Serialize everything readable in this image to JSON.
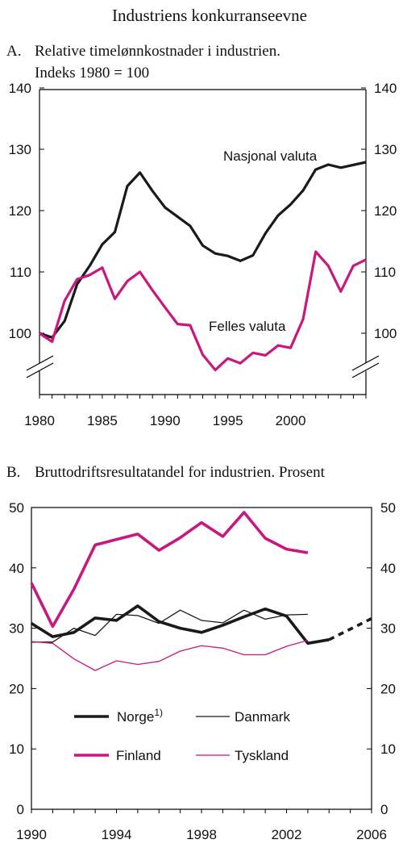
{
  "title": "Industriens konkurranseevne",
  "chart_data": [
    {
      "type": "line",
      "panel_label": "A.",
      "title": "Relative timelønnkostnader i industrien.",
      "subtitle": "Indeks 1980 = 100",
      "xlim": [
        1980,
        2006
      ],
      "ylim": [
        100,
        140
      ],
      "yticks": [
        "100",
        "110",
        "120",
        "130",
        "140"
      ],
      "xticks": [
        "1980",
        "1985",
        "1990",
        "1995",
        "2000"
      ],
      "axis_break": true,
      "grid": false,
      "series": [
        {
          "name": "Nasjonal valuta",
          "color": "#1a1a1a",
          "x": [
            1980,
            1981,
            1982,
            1983,
            1984,
            1985,
            1986,
            1987,
            1988,
            1989,
            1990,
            1991,
            1992,
            1993,
            1994,
            1995,
            1996,
            1997,
            1998,
            1999,
            2000,
            2001,
            2002,
            2003,
            2004,
            2006
          ],
          "values": [
            100,
            99.3,
            102,
            108,
            111,
            114.5,
            116.5,
            124,
            126.2,
            123.2,
            120.5,
            119,
            117.5,
            114.3,
            113,
            112.6,
            111.8,
            112.7,
            116.3,
            119.2,
            121,
            123.3,
            126.7,
            127.5,
            127,
            127.9
          ]
        },
        {
          "name": "Felles valuta",
          "color": "#c8177e",
          "x": [
            1980,
            1981,
            1982,
            1983,
            1984,
            1985,
            1986,
            1987,
            1988,
            1989,
            1990,
            1991,
            1992,
            1993,
            1994,
            1995,
            1996,
            1997,
            1998,
            1999,
            2000,
            2001,
            2002,
            2003,
            2004,
            2005,
            2006
          ],
          "values": [
            100,
            98.6,
            105.3,
            108.8,
            109.5,
            110.7,
            105.6,
            108.5,
            110,
            107,
            104.2,
            101.5,
            101.3,
            96.5,
            94,
            95.9,
            95.1,
            96.8,
            96.4,
            98,
            97.6,
            102.3,
            113.3,
            111,
            106.8,
            111,
            112
          ]
        }
      ]
    },
    {
      "type": "line",
      "panel_label": "B.",
      "title": "Bruttodriftsresultatandel for industrien. Prosent",
      "xlim": [
        1990,
        2006
      ],
      "ylim": [
        0,
        50
      ],
      "yticks": [
        "0",
        "10",
        "20",
        "30",
        "40",
        "50"
      ],
      "xticks": [
        "1990",
        "1994",
        "1998",
        "2002",
        "2006"
      ],
      "grid": false,
      "legend_position": "lower-center",
      "series": [
        {
          "name": "Norge",
          "superscript": "1)",
          "color": "#1a1a1a",
          "x": [
            1990,
            1991,
            1992,
            1993,
            1994,
            1995,
            1996,
            1997,
            1998,
            1999,
            2000,
            2001,
            2002,
            2003,
            2004
          ],
          "values": [
            30.8,
            28.6,
            29.3,
            31.7,
            31.3,
            33.7,
            31.1,
            30,
            29.3,
            30.5,
            31.9,
            33.2,
            32,
            27.5,
            28.1
          ],
          "projection": {
            "x": [
              2004,
              2006
            ],
            "values": [
              28.1,
              31.6
            ]
          }
        },
        {
          "name": "Danmark",
          "color": "#1a1a1a",
          "x": [
            1990,
            1991,
            1992,
            1993,
            1994,
            1995,
            1996,
            1997,
            1998,
            1999,
            2000,
            2001,
            2002,
            2003
          ],
          "values": [
            27.7,
            27.7,
            30,
            28.8,
            32.3,
            32.1,
            30.8,
            33,
            31.3,
            30.9,
            33,
            31.5,
            32.2,
            32.3
          ]
        },
        {
          "name": "Finland",
          "color": "#c8177e",
          "x": [
            1990,
            1991,
            1992,
            1993,
            1994,
            1995,
            1996,
            1997,
            1998,
            1999,
            2000,
            2001,
            2002,
            2003
          ],
          "values": [
            37.5,
            30.3,
            36.5,
            43.8,
            44.7,
            45.6,
            42.9,
            45,
            47.5,
            45.2,
            49.2,
            44.9,
            43.1,
            42.5
          ]
        },
        {
          "name": "Tyskland",
          "color": "#c8177e",
          "x": [
            1990,
            1991,
            1992,
            1993,
            1994,
            1995,
            1996,
            1997,
            1998,
            1999,
            2000,
            2001,
            2002,
            2003
          ],
          "values": [
            27.8,
            27.5,
            24.9,
            23,
            24.6,
            24,
            24.5,
            26.2,
            27.1,
            26.7,
            25.6,
            25.6,
            27,
            28
          ]
        }
      ]
    }
  ]
}
